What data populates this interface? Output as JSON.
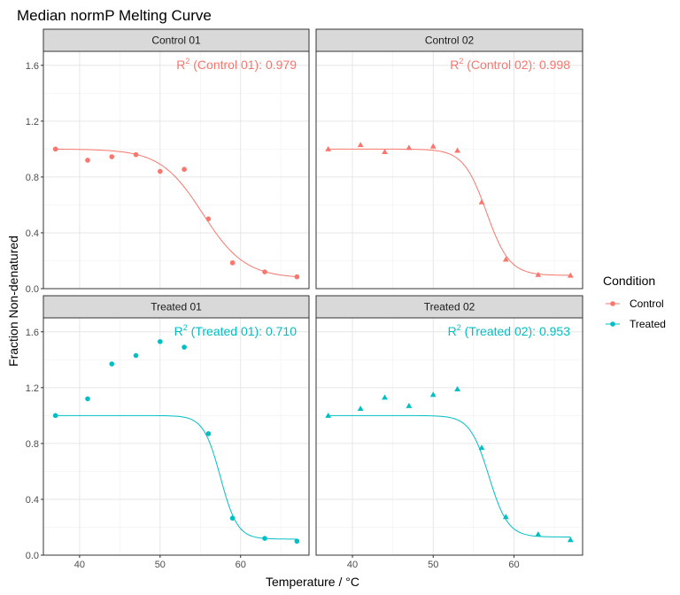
{
  "chart_data": {
    "type": "scatter",
    "title": "Median normP Melting Curve",
    "xlabel": "Temperature / °C",
    "ylabel": "Fraction Non-denatured",
    "xlim": [
      35.5,
      68.5
    ],
    "ylim": [
      0,
      1.7
    ],
    "x_ticks": [
      40,
      50,
      60
    ],
    "y_ticks": [
      0.0,
      0.4,
      0.8,
      1.2,
      1.6
    ],
    "y_tick_labels": [
      "0.0",
      "0.4",
      "0.8",
      "1.2",
      "1.6"
    ],
    "x_tick_labels": [
      "40",
      "50",
      "60"
    ],
    "grid": true,
    "legend": {
      "title": "Condition",
      "placement": "right",
      "entries": [
        {
          "label": "Control",
          "color": "#F8766D"
        },
        {
          "label": "Treated",
          "color": "#00BFC4"
        }
      ]
    },
    "panels": [
      {
        "strip": "Control 01",
        "condition": "Control",
        "color": "#F8766D",
        "marker": "circle",
        "annotation": {
          "prefix": "R",
          "sup": "2",
          "text": " (Control 01):  0.979"
        },
        "points": {
          "x": [
            37,
            41,
            44,
            47,
            50,
            53,
            56,
            59,
            63,
            67
          ],
          "y": [
            1.0,
            0.92,
            0.945,
            0.96,
            0.84,
            0.855,
            0.5,
            0.185,
            0.12,
            0.085
          ]
        },
        "curve": {
          "plateau": 0.075,
          "tm": 55.3,
          "slope": 0.38,
          "top": 1.0
        }
      },
      {
        "strip": "Control 02",
        "condition": "Control",
        "color": "#F8766D",
        "marker": "triangle",
        "annotation": {
          "prefix": "R",
          "sup": "2",
          "text": " (Control 02):  0.998"
        },
        "points": {
          "x": [
            37,
            41,
            44,
            47,
            50,
            53,
            56,
            59,
            63,
            67
          ],
          "y": [
            1.0,
            1.03,
            0.98,
            1.01,
            1.02,
            0.99,
            0.62,
            0.21,
            0.1,
            0.095
          ]
        },
        "curve": {
          "plateau": 0.095,
          "tm": 56.6,
          "slope": 0.7,
          "top": 1.0
        }
      },
      {
        "strip": "Treated 01",
        "condition": "Treated",
        "color": "#00BFC4",
        "marker": "circle",
        "annotation": {
          "prefix": "R",
          "sup": "2",
          "text": " (Treated 01):  0.710"
        },
        "points": {
          "x": [
            37,
            41,
            44,
            47,
            50,
            53,
            56,
            59,
            63,
            67
          ],
          "y": [
            1.0,
            1.12,
            1.37,
            1.43,
            1.53,
            1.49,
            0.87,
            0.265,
            0.12,
            0.1
          ]
        },
        "curve": {
          "plateau": 0.115,
          "tm": 57.5,
          "slope": 0.95,
          "top": 1.0
        }
      },
      {
        "strip": "Treated 02",
        "condition": "Treated",
        "color": "#00BFC4",
        "marker": "triangle",
        "annotation": {
          "prefix": "R",
          "sup": "2",
          "text": " (Treated 02):  0.953"
        },
        "points": {
          "x": [
            37,
            41,
            44,
            47,
            50,
            53,
            56,
            59,
            63,
            67
          ],
          "y": [
            1.0,
            1.05,
            1.13,
            1.07,
            1.15,
            1.19,
            0.77,
            0.275,
            0.15,
            0.11
          ]
        },
        "curve": {
          "plateau": 0.13,
          "tm": 56.9,
          "slope": 0.85,
          "top": 1.0
        }
      }
    ]
  }
}
